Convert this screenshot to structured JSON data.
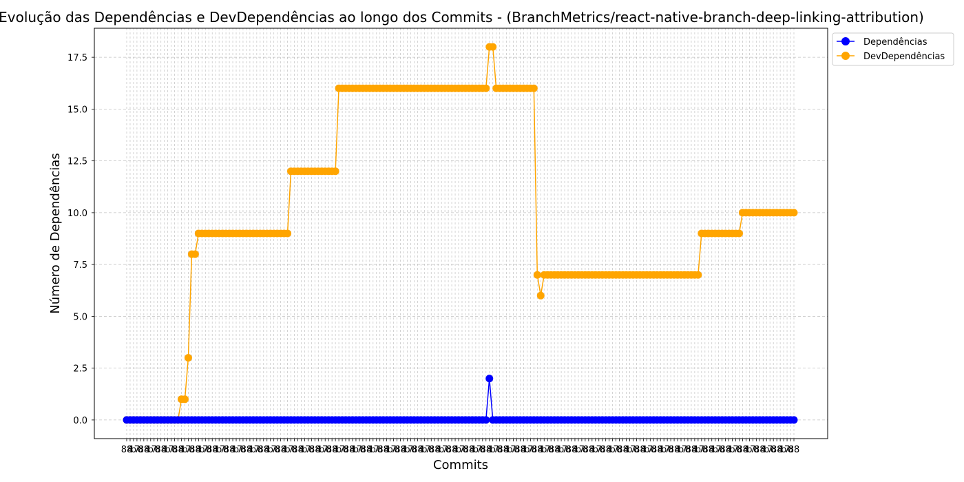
{
  "chart_data": {
    "type": "line",
    "title": "Evolução das Dependências e DevDependências ao longo dos Commits - (BranchMetrics/react-native-branch-deep-linking-attribution)",
    "xlabel": "Commits",
    "ylabel": "Número de Dependências",
    "ylim": [
      -0.9,
      18.9
    ],
    "yticks": [
      "0.0",
      "2.5",
      "5.0",
      "7.5",
      "10.0",
      "12.5",
      "15.0",
      "17.5"
    ],
    "grid": true,
    "legend_position": "top-right outside",
    "commit_count": 196,
    "commit_tick_labels": [
      "88",
      "4",
      "b",
      "7",
      "d"
    ],
    "series": [
      {
        "name": "Dependências",
        "color": "#0000ff",
        "segments": [
          {
            "from": 0,
            "to": 105,
            "value": 0
          },
          {
            "from": 106,
            "to": 106,
            "value": 2
          },
          {
            "from": 107,
            "to": 195,
            "value": 0
          }
        ]
      },
      {
        "name": "DevDependências",
        "color": "#ffa500",
        "segments": [
          {
            "from": 0,
            "to": 15,
            "value": 0
          },
          {
            "from": 16,
            "to": 17,
            "value": 1
          },
          {
            "from": 18,
            "to": 18,
            "value": 3
          },
          {
            "from": 19,
            "to": 20,
            "value": 8
          },
          {
            "from": 21,
            "to": 47,
            "value": 9
          },
          {
            "from": 48,
            "to": 61,
            "value": 12
          },
          {
            "from": 62,
            "to": 105,
            "value": 16
          },
          {
            "from": 106,
            "to": 107,
            "value": 18
          },
          {
            "from": 108,
            "to": 119,
            "value": 16
          },
          {
            "from": 120,
            "to": 120,
            "value": 7
          },
          {
            "from": 121,
            "to": 121,
            "value": 6
          },
          {
            "from": 122,
            "to": 167,
            "value": 7
          },
          {
            "from": 168,
            "to": 179,
            "value": 9
          },
          {
            "from": 180,
            "to": 195,
            "value": 10
          }
        ]
      }
    ]
  }
}
